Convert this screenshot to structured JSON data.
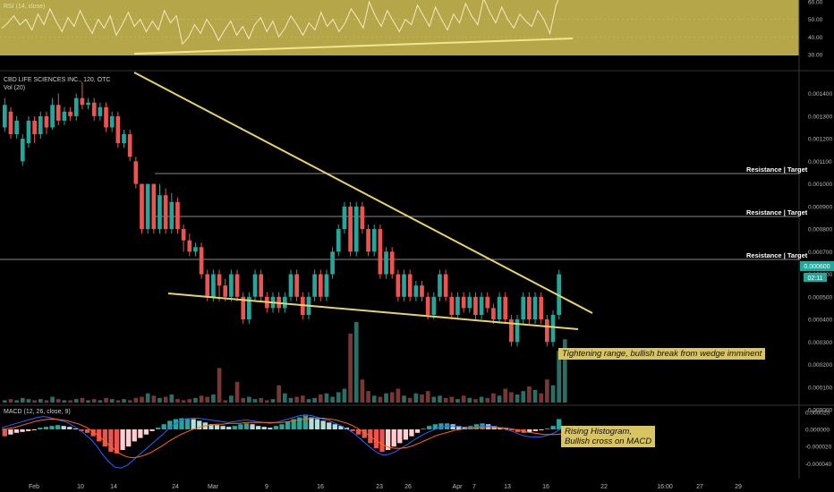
{
  "header": {
    "rsi_title": "RSI (14, close)",
    "symbol_title": "CBD LIFE SCIENCES INC., 120, OTC",
    "vol_title": "Vol (20)",
    "macd_title": "MACD (12, 26, close, 9)"
  },
  "annotations": {
    "resistance_label": "Resistance | Target",
    "wedge_note": "Tightening range, bullish break from wedge imminent",
    "macd_note_line1": "Rising Histogram,",
    "macd_note_line2": "Bullish  cross on MACD"
  },
  "price_badge": {
    "value": "0.000600",
    "countdown": "02:11"
  },
  "colors": {
    "up": "#26a69a",
    "down": "#ef5350",
    "trend": "#e6d36a",
    "rsi_panel": "#b5a64a",
    "badge": "#26a69a",
    "annot_bg": "#d8c460"
  },
  "chart_data": [
    {
      "type": "line",
      "title": "RSI (14, close)",
      "ylim": [
        30,
        60
      ],
      "y_ticks": [
        "60.00",
        "50.00",
        "40.00",
        "30.00"
      ],
      "values": [
        45,
        48,
        52,
        47,
        50,
        44,
        53,
        47,
        56,
        49,
        43,
        51,
        46,
        55,
        48,
        42,
        50,
        45,
        52,
        41,
        47,
        54,
        46,
        50,
        43,
        49,
        44,
        55,
        48,
        52,
        36,
        40,
        47,
        42,
        50,
        45,
        38,
        44,
        49,
        41,
        46,
        39,
        47,
        51,
        43,
        49,
        40,
        45,
        52,
        47,
        41,
        48,
        44,
        54,
        46,
        50,
        43,
        48,
        56,
        51,
        45,
        60,
        52,
        46,
        55,
        49,
        43,
        50,
        47,
        58,
        52,
        46,
        57,
        50,
        44,
        53,
        48,
        59,
        52,
        47,
        62,
        54,
        48,
        57,
        50,
        45,
        53,
        49,
        46,
        55,
        50,
        42,
        58,
        66
      ]
    },
    {
      "type": "candlestick",
      "title": "CBD LIFE SCIENCES INC., 120, OTC",
      "x_tick_labels": [
        "Feb",
        "10",
        "14",
        "24",
        "Mar",
        "9",
        "16",
        "23",
        "26",
        "Apr",
        "7",
        "13",
        "16",
        "22",
        "16:00",
        "27",
        "29"
      ],
      "y_ticks": [
        "0.001400",
        "0.001300",
        "0.001200",
        "0.001100",
        "0.001000",
        "0.000900",
        "0.000800",
        "0.000700",
        "0.000600",
        "0.000500",
        "0.000400",
        "0.000300",
        "0.000200",
        "0.000100",
        "0.000000"
      ],
      "ylim": [
        0.0,
        0.00145
      ],
      "resistance_levels": [
        0.001,
        0.0008,
        0.0006
      ],
      "last_price": 0.0006,
      "candles": [
        {
          "o": 0.00125,
          "c": 0.00135,
          "h": 0.00138,
          "l": 0.00123
        },
        {
          "o": 0.00132,
          "c": 0.00122,
          "h": 0.00134,
          "l": 0.0012
        },
        {
          "o": 0.00122,
          "c": 0.00128,
          "h": 0.0013,
          "l": 0.0012
        },
        {
          "o": 0.0011,
          "c": 0.0012,
          "h": 0.00122,
          "l": 0.00108
        },
        {
          "o": 0.00118,
          "c": 0.00128,
          "h": 0.0013,
          "l": 0.00116
        },
        {
          "o": 0.00128,
          "c": 0.00122,
          "h": 0.0013,
          "l": 0.00118
        },
        {
          "o": 0.00122,
          "c": 0.0013,
          "h": 0.00132,
          "l": 0.0012
        },
        {
          "o": 0.0013,
          "c": 0.00125,
          "h": 0.00132,
          "l": 0.00122
        },
        {
          "o": 0.00125,
          "c": 0.00135,
          "h": 0.00138,
          "l": 0.00124
        },
        {
          "o": 0.00135,
          "c": 0.00128,
          "h": 0.0014,
          "l": 0.00126
        },
        {
          "o": 0.00128,
          "c": 0.00132,
          "h": 0.00134,
          "l": 0.00126
        },
        {
          "o": 0.00132,
          "c": 0.0013,
          "h": 0.00134,
          "l": 0.00128
        },
        {
          "o": 0.0013,
          "c": 0.00138,
          "h": 0.0014,
          "l": 0.00128
        },
        {
          "o": 0.00138,
          "c": 0.00135,
          "h": 0.00145,
          "l": 0.00133
        },
        {
          "o": 0.00135,
          "c": 0.00136,
          "h": 0.00138,
          "l": 0.00133
        },
        {
          "o": 0.00136,
          "c": 0.0013,
          "h": 0.00138,
          "l": 0.00128
        },
        {
          "o": 0.0013,
          "c": 0.00134,
          "h": 0.00136,
          "l": 0.00128
        },
        {
          "o": 0.00134,
          "c": 0.00125,
          "h": 0.00136,
          "l": 0.00123
        },
        {
          "o": 0.00125,
          "c": 0.0013,
          "h": 0.00132,
          "l": 0.00123
        },
        {
          "o": 0.0013,
          "c": 0.00118,
          "h": 0.00132,
          "l": 0.00116
        },
        {
          "o": 0.00118,
          "c": 0.00122,
          "h": 0.00124,
          "l": 0.00116
        },
        {
          "o": 0.00122,
          "c": 0.00112,
          "h": 0.00124,
          "l": 0.0011
        },
        {
          "o": 0.0011,
          "c": 0.001,
          "h": 0.00112,
          "l": 0.00098
        },
        {
          "o": 0.001,
          "c": 0.0008,
          "h": 0.001,
          "l": 0.00078
        },
        {
          "o": 0.0008,
          "c": 0.001,
          "h": 0.001,
          "l": 0.00078
        },
        {
          "o": 0.001,
          "c": 0.0008,
          "h": 0.001,
          "l": 0.00078
        },
        {
          "o": 0.0008,
          "c": 0.00095,
          "h": 0.001,
          "l": 0.00078
        },
        {
          "o": 0.00095,
          "c": 0.0008,
          "h": 0.00098,
          "l": 0.00078
        },
        {
          "o": 0.0008,
          "c": 0.00092,
          "h": 0.00096,
          "l": 0.00078
        },
        {
          "o": 0.00092,
          "c": 0.0008,
          "h": 0.00094,
          "l": 0.00078
        },
        {
          "o": 0.0008,
          "c": 0.00075,
          "h": 0.00082,
          "l": 0.0007
        },
        {
          "o": 0.00075,
          "c": 0.0007,
          "h": 0.00078,
          "l": 0.00068
        },
        {
          "o": 0.0007,
          "c": 0.00072,
          "h": 0.00074,
          "l": 0.00068
        },
        {
          "o": 0.00072,
          "c": 0.0006,
          "h": 0.00074,
          "l": 0.00058
        },
        {
          "o": 0.0006,
          "c": 0.0005,
          "h": 0.00062,
          "l": 0.00048
        },
        {
          "o": 0.0005,
          "c": 0.0006,
          "h": 0.00062,
          "l": 0.00048
        },
        {
          "o": 0.0006,
          "c": 0.00055,
          "h": 0.00062,
          "l": 0.00048
        },
        {
          "o": 0.00055,
          "c": 0.0005,
          "h": 0.00058,
          "l": 0.00048
        },
        {
          "o": 0.0005,
          "c": 0.0006,
          "h": 0.00062,
          "l": 0.00048
        },
        {
          "o": 0.0006,
          "c": 0.0005,
          "h": 0.00062,
          "l": 0.00048
        },
        {
          "o": 0.0005,
          "c": 0.0004,
          "h": 0.00052,
          "l": 0.00038
        },
        {
          "o": 0.0004,
          "c": 0.0005,
          "h": 0.00052,
          "l": 0.00038
        },
        {
          "o": 0.0005,
          "c": 0.0006,
          "h": 0.00062,
          "l": 0.00048
        },
        {
          "o": 0.0006,
          "c": 0.0005,
          "h": 0.00062,
          "l": 0.00048
        },
        {
          "o": 0.0005,
          "c": 0.00045,
          "h": 0.00052,
          "l": 0.00043
        },
        {
          "o": 0.00045,
          "c": 0.0005,
          "h": 0.00052,
          "l": 0.00043
        },
        {
          "o": 0.0005,
          "c": 0.00045,
          "h": 0.00052,
          "l": 0.00043
        },
        {
          "o": 0.00045,
          "c": 0.0005,
          "h": 0.00052,
          "l": 0.00043
        },
        {
          "o": 0.0005,
          "c": 0.0006,
          "h": 0.00062,
          "l": 0.00048
        },
        {
          "o": 0.0006,
          "c": 0.0005,
          "h": 0.00062,
          "l": 0.00048
        },
        {
          "o": 0.0005,
          "c": 0.00042,
          "h": 0.00052,
          "l": 0.0004
        },
        {
          "o": 0.00042,
          "c": 0.0005,
          "h": 0.00052,
          "l": 0.0004
        },
        {
          "o": 0.0005,
          "c": 0.0006,
          "h": 0.00062,
          "l": 0.00048
        },
        {
          "o": 0.0006,
          "c": 0.0005,
          "h": 0.00062,
          "l": 0.00048
        },
        {
          "o": 0.0005,
          "c": 0.0006,
          "h": 0.00062,
          "l": 0.00048
        },
        {
          "o": 0.0006,
          "c": 0.0007,
          "h": 0.00072,
          "l": 0.00058
        },
        {
          "o": 0.0007,
          "c": 0.0008,
          "h": 0.00082,
          "l": 0.00068
        },
        {
          "o": 0.0008,
          "c": 0.0009,
          "h": 0.00092,
          "l": 0.00078
        },
        {
          "o": 0.0009,
          "c": 0.0007,
          "h": 0.00092,
          "l": 0.00068
        },
        {
          "o": 0.0007,
          "c": 0.0009,
          "h": 0.00092,
          "l": 0.00068
        },
        {
          "o": 0.0009,
          "c": 0.0008,
          "h": 0.00092,
          "l": 0.00078
        },
        {
          "o": 0.0008,
          "c": 0.0007,
          "h": 0.00082,
          "l": 0.00068
        },
        {
          "o": 0.0007,
          "c": 0.0008,
          "h": 0.00082,
          "l": 0.00068
        },
        {
          "o": 0.0008,
          "c": 0.0006,
          "h": 0.00082,
          "l": 0.00058
        },
        {
          "o": 0.0006,
          "c": 0.0007,
          "h": 0.00072,
          "l": 0.00058
        },
        {
          "o": 0.0007,
          "c": 0.0006,
          "h": 0.00072,
          "l": 0.00058
        },
        {
          "o": 0.0006,
          "c": 0.0005,
          "h": 0.00062,
          "l": 0.00048
        },
        {
          "o": 0.0005,
          "c": 0.0006,
          "h": 0.00062,
          "l": 0.00048
        },
        {
          "o": 0.0006,
          "c": 0.0005,
          "h": 0.00062,
          "l": 0.00048
        },
        {
          "o": 0.0005,
          "c": 0.00055,
          "h": 0.00057,
          "l": 0.00048
        },
        {
          "o": 0.00055,
          "c": 0.0005,
          "h": 0.00057,
          "l": 0.00048
        },
        {
          "o": 0.0005,
          "c": 0.00042,
          "h": 0.00052,
          "l": 0.0004
        },
        {
          "o": 0.00042,
          "c": 0.0005,
          "h": 0.00052,
          "l": 0.0004
        },
        {
          "o": 0.0005,
          "c": 0.0006,
          "h": 0.00062,
          "l": 0.00048
        },
        {
          "o": 0.0006,
          "c": 0.0005,
          "h": 0.00062,
          "l": 0.00048
        },
        {
          "o": 0.0005,
          "c": 0.00042,
          "h": 0.00052,
          "l": 0.0004
        },
        {
          "o": 0.00042,
          "c": 0.0005,
          "h": 0.00052,
          "l": 0.0004
        },
        {
          "o": 0.0005,
          "c": 0.00045,
          "h": 0.00052,
          "l": 0.00043
        },
        {
          "o": 0.00045,
          "c": 0.0005,
          "h": 0.00052,
          "l": 0.00043
        },
        {
          "o": 0.0005,
          "c": 0.00042,
          "h": 0.00052,
          "l": 0.0004
        },
        {
          "o": 0.00042,
          "c": 0.0005,
          "h": 0.00052,
          "l": 0.0004
        },
        {
          "o": 0.0005,
          "c": 0.00045,
          "h": 0.00052,
          "l": 0.00043
        },
        {
          "o": 0.00045,
          "c": 0.0004,
          "h": 0.00047,
          "l": 0.00038
        },
        {
          "o": 0.0004,
          "c": 0.0005,
          "h": 0.00052,
          "l": 0.00038
        },
        {
          "o": 0.0005,
          "c": 0.0004,
          "h": 0.00052,
          "l": 0.00038
        },
        {
          "o": 0.0004,
          "c": 0.0003,
          "h": 0.00042,
          "l": 0.00028
        },
        {
          "o": 0.0003,
          "c": 0.0004,
          "h": 0.00042,
          "l": 0.00028
        },
        {
          "o": 0.0004,
          "c": 0.0005,
          "h": 0.00052,
          "l": 0.00038
        },
        {
          "o": 0.0005,
          "c": 0.0004,
          "h": 0.00052,
          "l": 0.00038
        },
        {
          "o": 0.0004,
          "c": 0.0005,
          "h": 0.00052,
          "l": 0.00038
        },
        {
          "o": 0.0005,
          "c": 0.0004,
          "h": 0.00052,
          "l": 0.00038
        },
        {
          "o": 0.0004,
          "c": 0.0003,
          "h": 0.00042,
          "l": 0.00028
        },
        {
          "o": 0.0003,
          "c": 0.00042,
          "h": 0.00044,
          "l": 0.00028
        },
        {
          "o": 0.00042,
          "c": 0.0006,
          "h": 0.00062,
          "l": 0.0004
        }
      ],
      "volume": [
        2,
        3,
        2,
        4,
        3,
        2,
        3,
        2,
        5,
        3,
        2,
        2,
        3,
        4,
        2,
        3,
        2,
        4,
        3,
        2,
        3,
        2,
        4,
        5,
        8,
        6,
        4,
        5,
        7,
        3,
        2,
        3,
        4,
        6,
        5,
        7,
        30,
        2,
        6,
        18,
        4,
        5,
        3,
        4,
        2,
        3,
        15,
        8,
        4,
        5,
        6,
        3,
        4,
        7,
        8,
        5,
        9,
        12,
        60,
        70,
        20,
        10,
        6,
        5,
        8,
        9,
        12,
        6,
        4,
        8,
        7,
        10,
        5,
        6,
        4,
        5,
        3,
        6,
        4,
        3,
        5,
        4,
        8,
        6,
        12,
        9,
        7,
        10,
        14,
        11,
        8,
        20,
        15,
        45,
        55
      ]
    },
    {
      "type": "bar",
      "title": "MACD (12, 26, close, 9)",
      "y_ticks": [
        "0.000020",
        "0.000000",
        "-0.000020",
        "-0.000040"
      ],
      "ylim": [
        -5e-05,
        2.5e-05
      ],
      "histogram": [
        -8e-06,
        -6e-06,
        -4e-06,
        -3e-06,
        -2e-06,
        -1e-06,
        2e-06,
        3e-06,
        4e-06,
        5e-06,
        4e-06,
        3e-06,
        1e-06,
        -2e-06,
        -4e-06,
        -8e-06,
        -1.4e-05,
        -2e-05,
        -2.6e-05,
        -2.8e-05,
        -2.4e-05,
        -2e-05,
        -1.4e-05,
        -1e-05,
        -6e-06,
        -2e-06,
        2e-06,
        6e-06,
        1e-05,
        1.2e-05,
        1.3e-05,
        1.3e-05,
        1.2e-05,
        1e-05,
        8e-06,
        6e-06,
        5e-06,
        4e-06,
        3e-06,
        4e-06,
        6e-06,
        7e-06,
        6e-06,
        4e-06,
        3e-06,
        2e-06,
        4e-06,
        6e-06,
        9e-06,
        1.2e-05,
        1.4e-05,
        1.6e-05,
        1.4e-05,
        1.2e-05,
        1e-05,
        8e-06,
        6e-06,
        4e-06,
        2e-06,
        -2e-06,
        -6e-06,
        -1e-05,
        -1.6e-05,
        -2.2e-05,
        -2.6e-05,
        -2.4e-05,
        -2e-05,
        -1.6e-05,
        -1.2e-05,
        -8e-06,
        -4e-06,
        1e-06,
        4e-06,
        6e-06,
        7e-06,
        7e-06,
        6e-06,
        4e-06,
        3e-06,
        4e-06,
        6e-06,
        7e-06,
        6e-06,
        4e-06,
        2e-06,
        1e-06,
        -1e-06,
        -3e-06,
        -4e-06,
        -3e-06,
        -2e-06,
        -1e-06,
        1e-06,
        4e-06,
        1.2e-05
      ],
      "macd_line": [
        2e-06,
        4e-06,
        6e-06,
        8e-06,
        1e-05,
        1.2e-05,
        1.4e-05,
        1.5e-05,
        1.4e-05,
        1.2e-05,
        1e-05,
        8e-06,
        4e-06,
        0.0,
        -6e-06,
        -1.2e-05,
        -2e-05,
        -3e-05,
        -3.8e-05,
        -4.4e-05,
        -4.5e-05,
        -4.2e-05,
        -3.6e-05,
        -3e-05,
        -2.4e-05,
        -1.8e-05,
        -1.2e-05,
        -6e-06,
        1e-06,
        6e-06,
        1e-05,
        1.2e-05,
        1.3e-05,
        1.3e-05,
        1.2e-05,
        1.1e-05,
        1e-05,
        9e-06,
        8e-06,
        9e-06,
        1e-05,
        1.1e-05,
        1e-05,
        9e-06,
        8e-06,
        7e-06,
        8e-06,
        1e-05,
        1.2e-05,
        1.4e-05,
        1.6e-05,
        1.7e-05,
        1.6e-05,
        1.4e-05,
        1.2e-05,
        1e-05,
        7e-06,
        4e-06,
        0.0,
        -4e-06,
        -1e-05,
        -1.6e-05,
        -2.2e-05,
        -2.7e-05,
        -3e-05,
        -2.9e-05,
        -2.6e-05,
        -2.2e-05,
        -1.8e-05,
        -1.3e-05,
        -9e-06,
        -5e-06,
        -2e-06,
        1e-06,
        3e-06,
        4e-06,
        4e-06,
        3e-06,
        2e-06,
        2e-06,
        3e-06,
        4e-06,
        4e-06,
        3e-06,
        1e-06,
        -1e-06,
        -3e-06,
        -6e-06,
        -8e-06,
        -9e-06,
        -9e-06,
        -8e-06,
        -6e-06,
        -3e-06,
        2e-06
      ],
      "signal_line": [
        0.0,
        1e-06,
        2e-06,
        4e-06,
        6e-06,
        8e-06,
        1e-05,
        1.1e-05,
        1.2e-05,
        1.2e-05,
        1.1e-05,
        1e-05,
        8e-06,
        6e-06,
        3e-06,
        -1e-06,
        -6e-06,
        -1.2e-05,
        -1.8e-05,
        -2.4e-05,
        -2.9e-05,
        -3.2e-05,
        -3.3e-05,
        -3.2e-05,
        -3e-05,
        -2.7e-05,
        -2.3e-05,
        -1.9e-05,
        -1.4e-05,
        -1e-05,
        -6e-06,
        -3e-06,
        0.0,
        2e-06,
        4e-06,
        5e-06,
        6e-06,
        6e-06,
        7e-06,
        7e-06,
        7e-06,
        8e-06,
        8e-06,
        8e-06,
        8e-06,
        8e-06,
        8e-06,
        8e-06,
        9e-06,
        1e-05,
        1.1e-05,
        1.2e-05,
        1.3e-05,
        1.3e-05,
        1.3e-05,
        1.2e-05,
        1.1e-05,
        9e-06,
        7e-06,
        4e-06,
        0.0,
        -4e-06,
        -9e-06,
        -1.4e-05,
        -1.8e-05,
        -2.1e-05,
        -2.2e-05,
        -2.2e-05,
        -2.1e-05,
        -1.9e-05,
        -1.6e-05,
        -1.3e-05,
        -1e-05,
        -7e-06,
        -5e-06,
        -3e-06,
        -1e-06,
        0.0,
        1e-06,
        1e-06,
        2e-06,
        2e-06,
        2e-06,
        2e-06,
        2e-06,
        1e-06,
        0.0,
        -1e-06,
        -3e-06,
        -4e-06,
        -5e-06,
        -6e-06,
        -6e-06,
        -6e-06,
        -5e-06
      ]
    }
  ]
}
